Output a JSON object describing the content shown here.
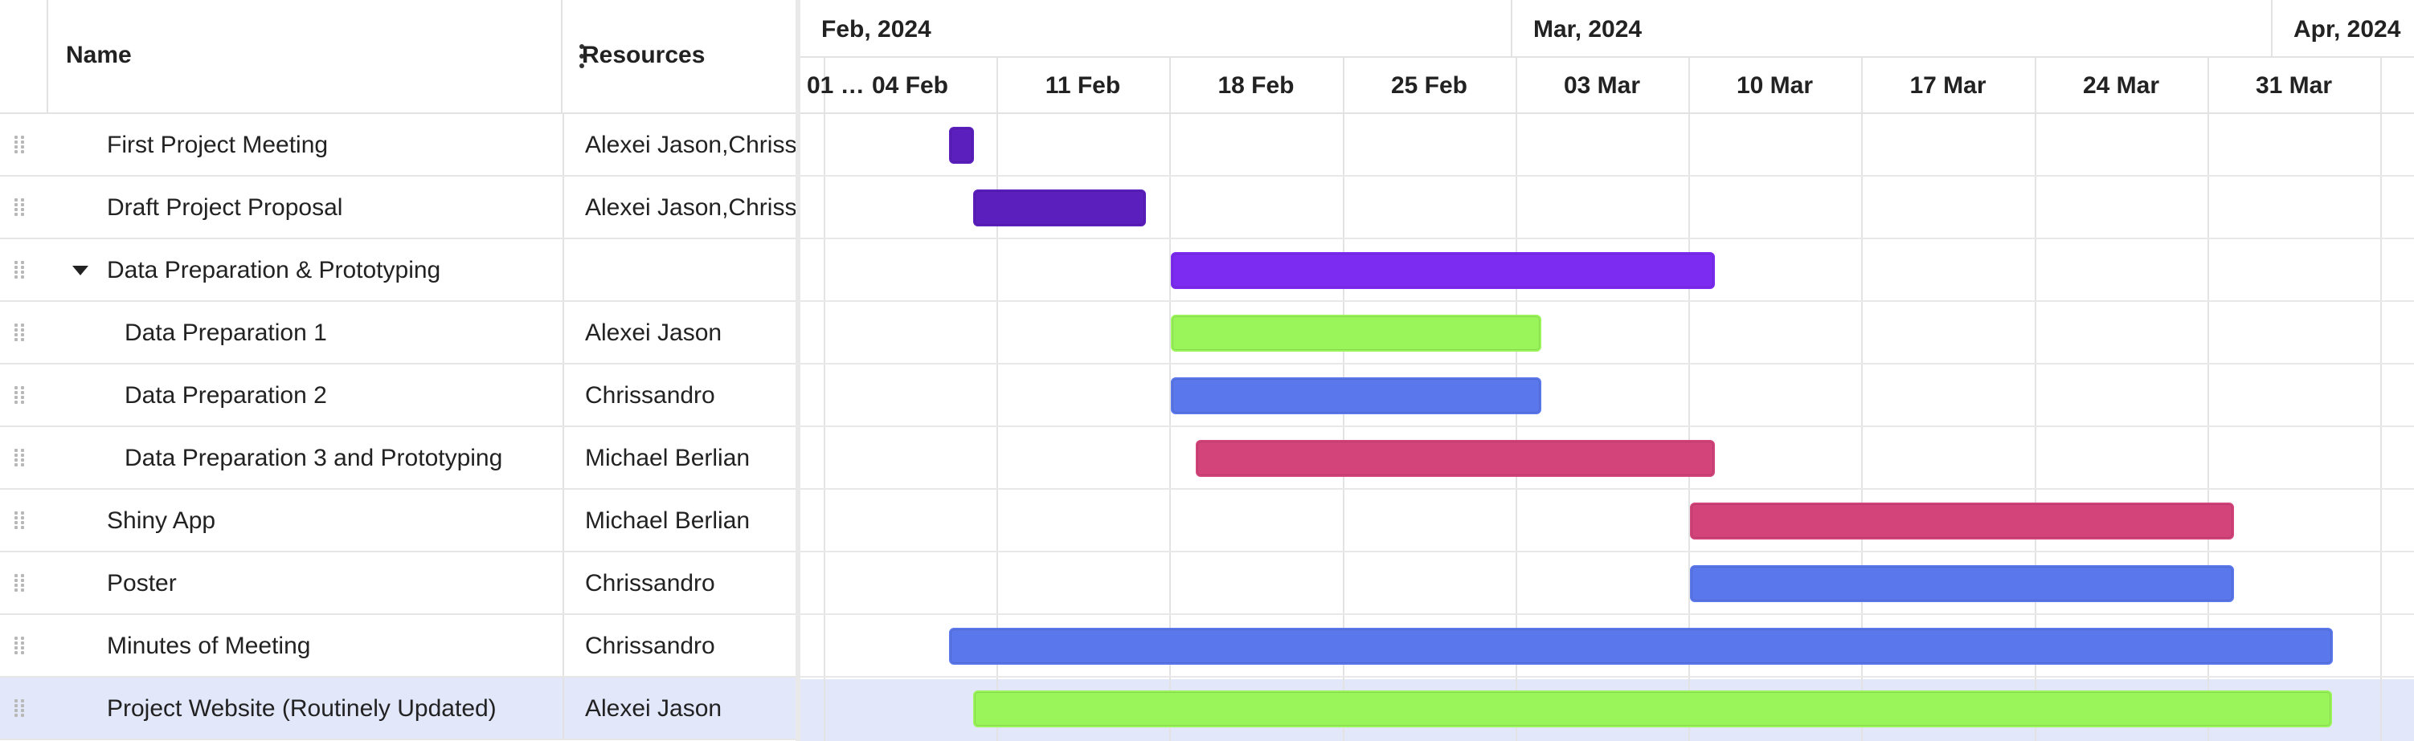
{
  "grid": {
    "columns": {
      "name": "Name",
      "resources": "Resources"
    },
    "rows": [
      {
        "name": "First Project Meeting",
        "resources": "Alexei Jason,Chrissandro",
        "level": 0,
        "parent": false,
        "selected": false
      },
      {
        "name": "Draft Project Proposal",
        "resources": "Alexei Jason,Chrissandro",
        "level": 0,
        "parent": false,
        "selected": false
      },
      {
        "name": "Data Preparation & Prototyping",
        "resources": "",
        "level": 0,
        "parent": true,
        "selected": false
      },
      {
        "name": "Data Preparation 1",
        "resources": "Alexei Jason",
        "level": 1,
        "parent": false,
        "selected": false
      },
      {
        "name": "Data Preparation 2",
        "resources": "Chrissandro",
        "level": 1,
        "parent": false,
        "selected": false
      },
      {
        "name": "Data Preparation 3 and Prototyping",
        "resources": "Michael Berlian",
        "level": 1,
        "parent": false,
        "selected": false
      },
      {
        "name": "Shiny App",
        "resources": "Michael Berlian",
        "level": 0,
        "parent": false,
        "selected": false
      },
      {
        "name": "Poster",
        "resources": "Chrissandro",
        "level": 0,
        "parent": false,
        "selected": false
      },
      {
        "name": "Minutes of Meeting",
        "resources": "Chrissandro",
        "level": 0,
        "parent": false,
        "selected": false
      },
      {
        "name": "Project Website (Routinely Updated)",
        "resources": "Alexei Jason",
        "level": 0,
        "parent": false,
        "selected": true
      }
    ]
  },
  "timeline": {
    "months": [
      "Feb, 2024",
      "Mar, 2024",
      "Apr, 2024"
    ],
    "weeks": [
      "01 …",
      "04 Feb",
      "11 Feb",
      "18 Feb",
      "25 Feb",
      "03 Mar",
      "10 Mar",
      "17 Mar",
      "24 Mar",
      "31 Mar"
    ]
  },
  "tasks": [
    {
      "start": "2024-02-05",
      "end": "2024-02-05",
      "color": "#5b1fbd"
    },
    {
      "start": "2024-02-06",
      "end": "2024-02-12",
      "color": "#5b1fbd"
    },
    {
      "start": "2024-02-14",
      "end": "2024-03-06",
      "color": "#7b2cf0"
    },
    {
      "start": "2024-02-14",
      "end": "2024-02-28",
      "color": "#9af55a"
    },
    {
      "start": "2024-02-14",
      "end": "2024-02-28",
      "color": "#5a78ec"
    },
    {
      "start": "2024-02-15",
      "end": "2024-03-06",
      "color": "#d2447a"
    },
    {
      "start": "2024-03-06",
      "end": "2024-03-27",
      "color": "#d2447a"
    },
    {
      "start": "2024-03-06",
      "end": "2024-03-27",
      "color": "#5a78ec"
    },
    {
      "start": "2024-02-05",
      "end": "2024-03-31",
      "color": "#5a78ec"
    },
    {
      "start": "2024-02-06",
      "end": "2024-03-31",
      "color": "#9af55a"
    }
  ],
  "colors": {
    "selected_row": "#e2e7fa",
    "grid_line": "#e3e3e3"
  }
}
